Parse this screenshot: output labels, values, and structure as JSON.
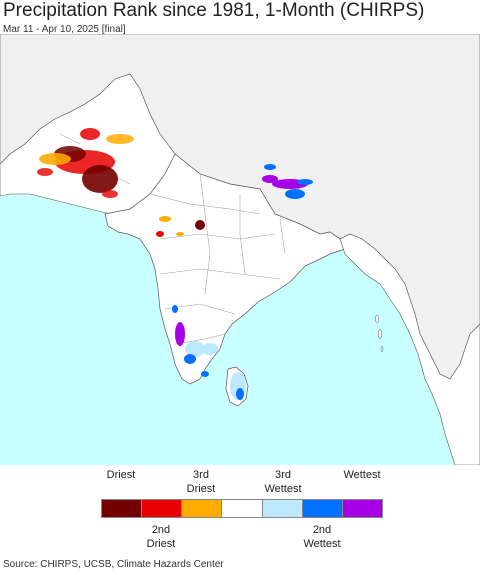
{
  "header": {
    "title": "Precipitation Rank since 1981, 1-Month (CHIRPS)",
    "subtitle": "Mar 11 - Apr 10, 2025 [final]"
  },
  "legend": {
    "top_labels": [
      {
        "line1": "",
        "line2": "Driest"
      },
      {
        "line1": "3rd",
        "line2": "Driest"
      },
      {
        "line1": "3rd",
        "line2": "Wettest"
      },
      {
        "line1": "",
        "line2": "Wettest"
      }
    ],
    "bottom_labels": [
      {
        "line1": "2nd",
        "line2": "Driest"
      },
      {
        "line1": "2nd",
        "line2": "Wettest"
      }
    ],
    "colors": [
      "#730000",
      "#e60000",
      "#ffaa00",
      "#ffffff",
      "#bee8ff",
      "#0070ff",
      "#a800e6"
    ]
  },
  "map": {
    "ocean_color": "#c8ffff",
    "land_color": "#ffffff",
    "outside_land_color": "#f0f0f0",
    "border_color": "#555555"
  },
  "footer": {
    "source": "Source: CHIRPS, UCSB, Climate Hazards Center"
  }
}
